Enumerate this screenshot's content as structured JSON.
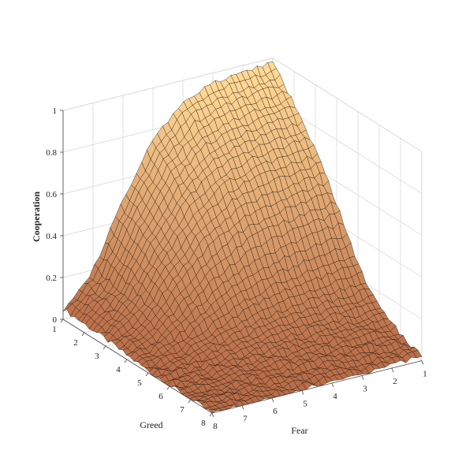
{
  "chart_data": {
    "type": "surface",
    "title": "",
    "xlabel": "Greed",
    "ylabel": "Fear",
    "zlabel": "Cooperation",
    "xlim": [
      1,
      8
    ],
    "ylim": [
      1,
      8
    ],
    "zlim": [
      0,
      1
    ],
    "x_ticks": [
      "1",
      "2",
      "3",
      "4",
      "5",
      "6",
      "7",
      "8"
    ],
    "y_ticks": [
      "1",
      "2",
      "3",
      "4",
      "5",
      "6",
      "7",
      "8"
    ],
    "z_ticks": [
      "0",
      "0.2",
      "0.4",
      "0.6",
      "0.8",
      "1"
    ],
    "z_tick_values": [
      0,
      0.2,
      0.4,
      0.6,
      0.8,
      1
    ],
    "grid": true,
    "colormap": "copper",
    "fear_samples": [
      1,
      2,
      3,
      4,
      5,
      6,
      7,
      8
    ],
    "cooperation_at_greed_1": [
      0.98,
      0.97,
      0.95,
      0.9,
      0.75,
      0.5,
      0.2,
      0.05
    ],
    "cooperation_at_greed_8": [
      0.05,
      0.04,
      0.03,
      0.02,
      0.01,
      0.01,
      0.0,
      0.0
    ]
  }
}
